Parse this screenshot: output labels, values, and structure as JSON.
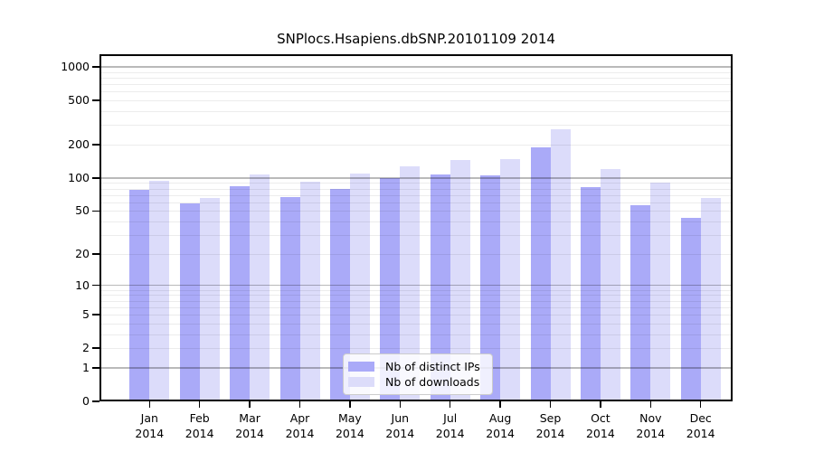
{
  "chart_data": {
    "type": "bar",
    "title": "SNPlocs.Hsapiens.dbSNP.20101109 2014",
    "months": [
      "Jan",
      "Feb",
      "Mar",
      "Apr",
      "May",
      "Jun",
      "Jul",
      "Aug",
      "Sep",
      "Oct",
      "Nov",
      "Dec"
    ],
    "year": "2014",
    "series": [
      {
        "name": "Nb of distinct IPs",
        "color": "#aaaaf8",
        "values": [
          78,
          59,
          84,
          67,
          79,
          99,
          108,
          106,
          188,
          83,
          57,
          43
        ]
      },
      {
        "name": "Nb of downloads",
        "color": "#dcdcfa",
        "values": [
          95,
          66,
          108,
          92,
          109,
          127,
          146,
          148,
          274,
          120,
          90,
          66
        ]
      }
    ],
    "y_ticks": [
      0,
      1,
      2,
      5,
      10,
      20,
      50,
      100,
      200,
      500,
      1000
    ],
    "y_scale": "log10(1+x)",
    "ylim": [
      0,
      1300
    ],
    "grid": true,
    "grid_minor_per_decade": [
      2,
      3,
      4,
      5,
      6,
      7,
      8,
      9
    ],
    "grid_major": [
      1,
      10,
      100,
      1000
    ],
    "legend_position": "lower center",
    "axis_color": "#000000",
    "legend_border_color": "#cccccc"
  }
}
